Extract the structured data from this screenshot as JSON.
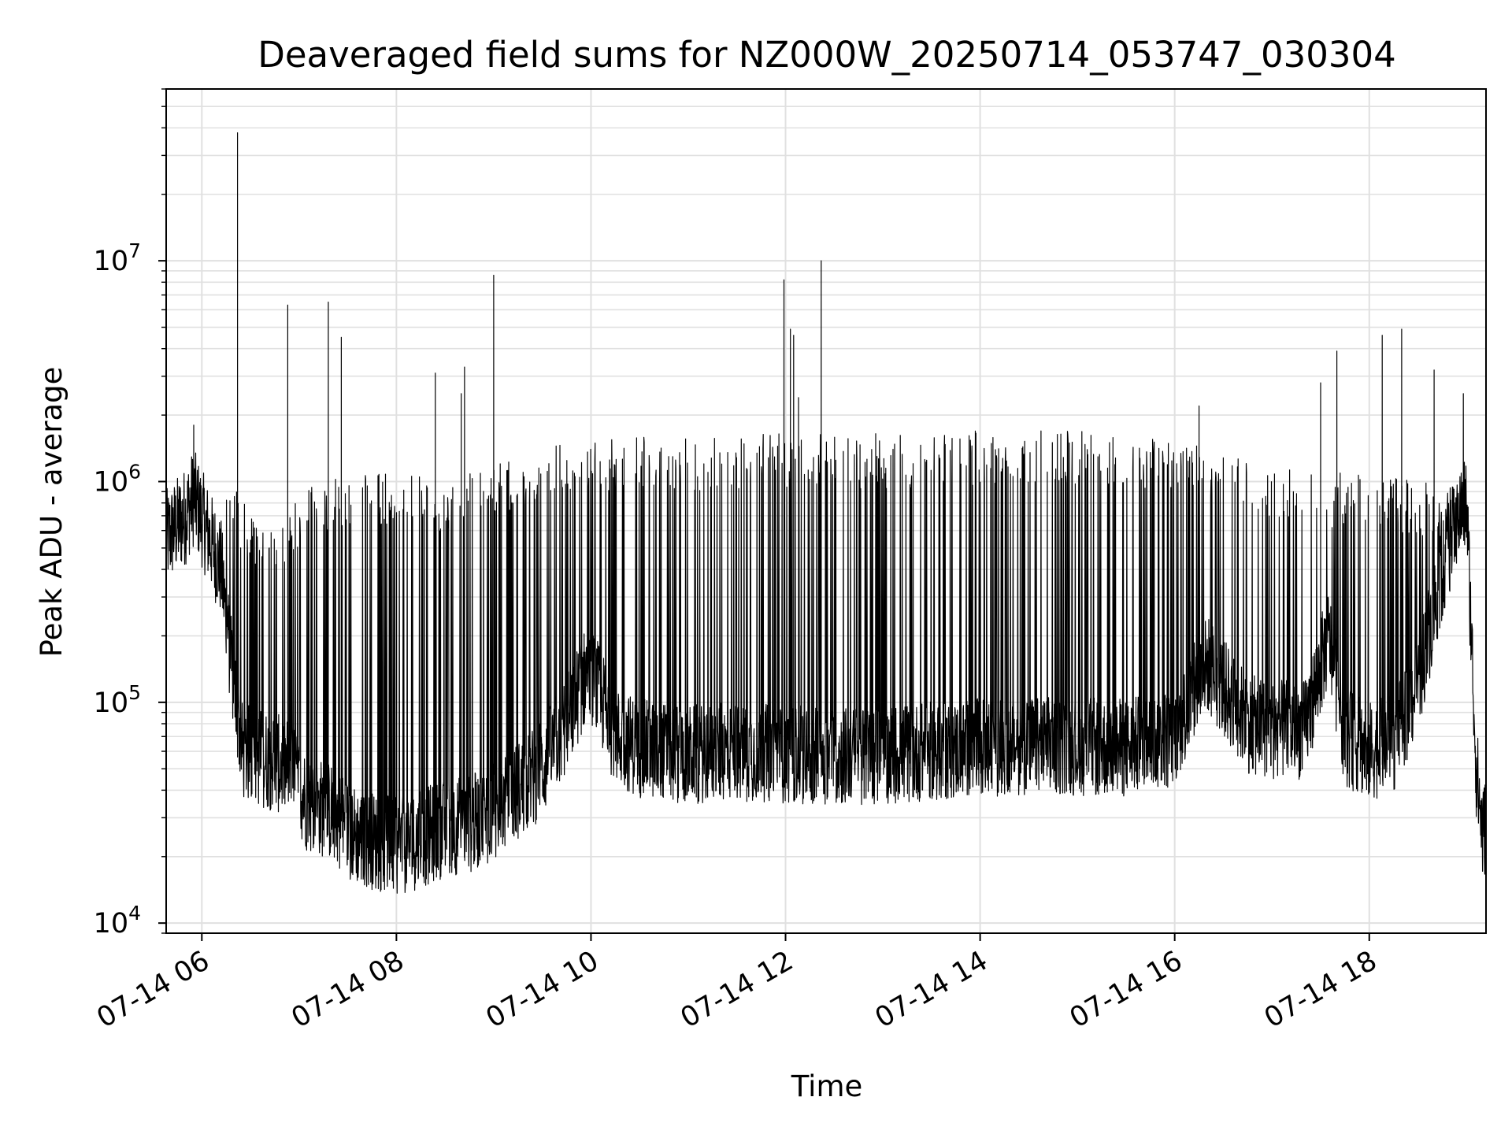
{
  "chart_data": {
    "type": "line",
    "title": "Deaveraged field sums for NZ000W_20250714_053747_030304",
    "xlabel": "Time",
    "ylabel": "Peak ADU - average",
    "x_range": [
      "2025-07-14 05:38",
      "2025-07-14 19:12"
    ],
    "ylim": [
      9000,
      60000000
    ],
    "y_scale": "log",
    "grid": true,
    "line_color": "#000000",
    "grid_color": "#e0e0e0",
    "x_ticks": [
      {
        "value": "2025-07-14 06:00",
        "label": "07-14 06"
      },
      {
        "value": "2025-07-14 08:00",
        "label": "07-14 08"
      },
      {
        "value": "2025-07-14 10:00",
        "label": "07-14 10"
      },
      {
        "value": "2025-07-14 12:00",
        "label": "07-14 12"
      },
      {
        "value": "2025-07-14 14:00",
        "label": "07-14 14"
      },
      {
        "value": "2025-07-14 16:00",
        "label": "07-14 16"
      },
      {
        "value": "2025-07-14 18:00",
        "label": "07-14 18"
      }
    ],
    "y_ticks": [
      {
        "value": 10000,
        "base": "10",
        "exp": "4"
      },
      {
        "value": 100000,
        "base": "10",
        "exp": "5"
      },
      {
        "value": 1000000,
        "base": "10",
        "exp": "6"
      },
      {
        "value": 10000000,
        "base": "10",
        "exp": "7"
      }
    ],
    "series": [
      {
        "baseline": [
          [
            "2025-07-14 05:38",
            550000
          ],
          [
            "2025-07-14 05:50",
            700000
          ],
          [
            "2025-07-14 05:55",
            850000
          ],
          [
            "2025-07-14 06:05",
            550000
          ],
          [
            "2025-07-14 06:12",
            400000
          ],
          [
            "2025-07-14 06:18",
            150000
          ],
          [
            "2025-07-14 06:25",
            60000
          ],
          [
            "2025-07-14 06:40",
            55000
          ],
          [
            "2025-07-14 06:55",
            50000
          ],
          [
            "2025-07-14 07:05",
            35000
          ],
          [
            "2025-07-14 07:20",
            32000
          ],
          [
            "2025-07-14 07:35",
            25000
          ],
          [
            "2025-07-14 07:50",
            23000
          ],
          [
            "2025-07-14 08:00",
            22000
          ],
          [
            "2025-07-14 08:15",
            24000
          ],
          [
            "2025-07-14 08:30",
            27000
          ],
          [
            "2025-07-14 08:45",
            28000
          ],
          [
            "2025-07-14 09:00",
            32000
          ],
          [
            "2025-07-14 09:15",
            40000
          ],
          [
            "2025-07-14 09:30",
            50000
          ],
          [
            "2025-07-14 09:45",
            80000
          ],
          [
            "2025-07-14 09:58",
            140000
          ],
          [
            "2025-07-14 10:05",
            110000
          ],
          [
            "2025-07-14 10:15",
            70000
          ],
          [
            "2025-07-14 10:30",
            62000
          ],
          [
            "2025-07-14 11:00",
            58000
          ],
          [
            "2025-07-14 11:30",
            60000
          ],
          [
            "2025-07-14 12:00",
            58000
          ],
          [
            "2025-07-14 12:30",
            57000
          ],
          [
            "2025-07-14 13:00",
            58000
          ],
          [
            "2025-07-14 13:30",
            60000
          ],
          [
            "2025-07-14 14:00",
            62000
          ],
          [
            "2025-07-14 14:30",
            64000
          ],
          [
            "2025-07-14 15:00",
            63000
          ],
          [
            "2025-07-14 15:30",
            62000
          ],
          [
            "2025-07-14 16:00",
            70000
          ],
          [
            "2025-07-14 16:20",
            150000
          ],
          [
            "2025-07-14 16:45",
            80000
          ],
          [
            "2025-07-14 17:00",
            75000
          ],
          [
            "2025-07-14 17:20",
            75000
          ],
          [
            "2025-07-14 17:35",
            200000
          ],
          [
            "2025-07-14 17:45",
            70000
          ],
          [
            "2025-07-14 18:00",
            60000
          ],
          [
            "2025-07-14 18:15",
            65000
          ],
          [
            "2025-07-14 18:30",
            120000
          ],
          [
            "2025-07-14 18:45",
            400000
          ],
          [
            "2025-07-14 18:55",
            700000
          ],
          [
            "2025-07-14 19:00",
            800000
          ],
          [
            "2025-07-14 19:03",
            200000
          ],
          [
            "2025-07-14 19:06",
            50000
          ],
          [
            "2025-07-14 19:10",
            25000
          ],
          [
            "2025-07-14 19:12",
            28000
          ]
        ],
        "envelope": [
          [
            "2025-07-14 06:15",
            1100000
          ],
          [
            "2025-07-14 06:40",
            600000
          ],
          [
            "2025-07-14 07:00",
            900000
          ],
          [
            "2025-07-14 07:30",
            1100000
          ],
          [
            "2025-07-14 08:00",
            1100000
          ],
          [
            "2025-07-14 08:30",
            1000000
          ],
          [
            "2025-07-14 09:00",
            1200000
          ],
          [
            "2025-07-14 09:30",
            1500000
          ],
          [
            "2025-07-14 10:00",
            1600000
          ],
          [
            "2025-07-14 11:00",
            1600000
          ],
          [
            "2025-07-14 12:00",
            1650000
          ],
          [
            "2025-07-14 13:00",
            1650000
          ],
          [
            "2025-07-14 14:00",
            1700000
          ],
          [
            "2025-07-14 15:00",
            1700000
          ],
          [
            "2025-07-14 16:00",
            1600000
          ],
          [
            "2025-07-14 16:30",
            1400000
          ],
          [
            "2025-07-14 17:00",
            1200000
          ],
          [
            "2025-07-14 17:30",
            1100000
          ],
          [
            "2025-07-14 18:00",
            1100000
          ],
          [
            "2025-07-14 18:30",
            1000000
          ],
          [
            "2025-07-14 18:55",
            1000000
          ]
        ],
        "peaks": [
          [
            "2025-07-14 05:55",
            1800000
          ],
          [
            "2025-07-14 06:22",
            38000000
          ],
          [
            "2025-07-14 06:53",
            6300000
          ],
          [
            "2025-07-14 07:18",
            6500000
          ],
          [
            "2025-07-14 07:26",
            4500000
          ],
          [
            "2025-07-14 08:24",
            3100000
          ],
          [
            "2025-07-14 08:40",
            2500000
          ],
          [
            "2025-07-14 08:42",
            3300000
          ],
          [
            "2025-07-14 09:00",
            8600000
          ],
          [
            "2025-07-14 11:59",
            8200000
          ],
          [
            "2025-07-14 12:03",
            4900000
          ],
          [
            "2025-07-14 12:05",
            4600000
          ],
          [
            "2025-07-14 12:08",
            2400000
          ],
          [
            "2025-07-14 12:22",
            10000000
          ],
          [
            "2025-07-14 16:15",
            2200000
          ],
          [
            "2025-07-14 17:30",
            2800000
          ],
          [
            "2025-07-14 17:40",
            3900000
          ],
          [
            "2025-07-14 18:08",
            4600000
          ],
          [
            "2025-07-14 18:20",
            4900000
          ],
          [
            "2025-07-14 18:40",
            3200000
          ],
          [
            "2025-07-14 18:58",
            2500000
          ]
        ]
      }
    ]
  }
}
